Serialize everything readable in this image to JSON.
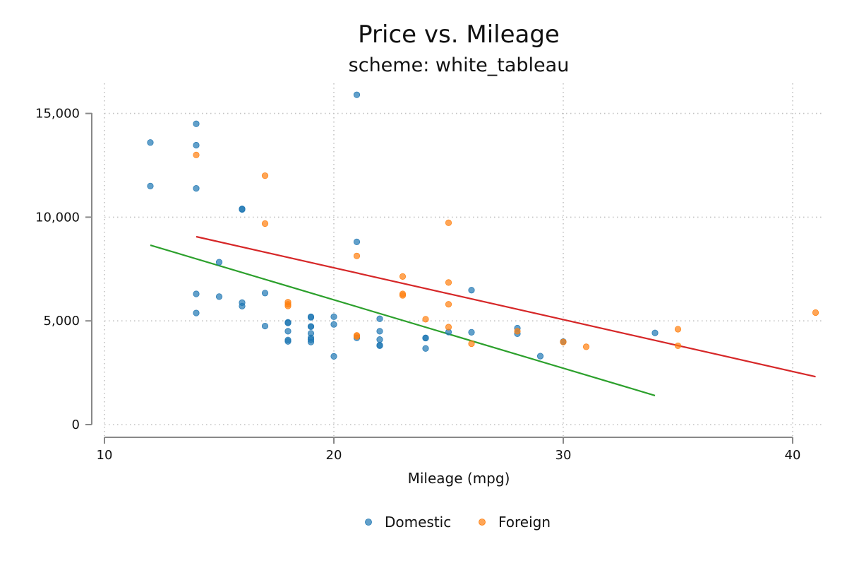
{
  "chart_data": {
    "type": "scatter",
    "title": "Price vs. Mileage",
    "subtitle": "scheme: white_tableau",
    "xlabel": "Mileage (mpg)",
    "ylabel": "",
    "xlim": [
      10,
      41.5
    ],
    "ylim": [
      -500,
      16000
    ],
    "x_ticks": [
      10,
      20,
      30,
      40
    ],
    "y_ticks": [
      0,
      5000,
      10000,
      15000
    ],
    "x_tick_labels": [
      "10",
      "20",
      "30",
      "40"
    ],
    "y_tick_labels": [
      "0",
      "5,000",
      "10,000",
      "15,000"
    ],
    "grid": true,
    "legend": "bottom",
    "series": [
      {
        "name": "Domestic",
        "color": "#1f77b4",
        "points": [
          [
            12,
            13600
          ],
          [
            12,
            11500
          ],
          [
            14,
            14500
          ],
          [
            14,
            13470
          ],
          [
            14,
            11390
          ],
          [
            14,
            6300
          ],
          [
            14,
            5380
          ],
          [
            15,
            7830
          ],
          [
            15,
            6170
          ],
          [
            16,
            10370
          ],
          [
            16,
            10400
          ],
          [
            16,
            5880
          ],
          [
            16,
            5710
          ],
          [
            17,
            6340
          ],
          [
            17,
            4750
          ],
          [
            18,
            4930
          ],
          [
            18,
            4900
          ],
          [
            18,
            4500
          ],
          [
            18,
            4080
          ],
          [
            18,
            4010
          ],
          [
            19,
            5200
          ],
          [
            19,
            5170
          ],
          [
            19,
            4730
          ],
          [
            19,
            4720
          ],
          [
            19,
            4400
          ],
          [
            19,
            4180
          ],
          [
            19,
            4100
          ],
          [
            19,
            3980
          ],
          [
            20,
            5200
          ],
          [
            20,
            4830
          ],
          [
            20,
            3290
          ],
          [
            21,
            15900
          ],
          [
            21,
            8810
          ],
          [
            21,
            4180
          ],
          [
            22,
            5100
          ],
          [
            22,
            4500
          ],
          [
            22,
            4100
          ],
          [
            22,
            3830
          ],
          [
            22,
            3800
          ],
          [
            24,
            4180
          ],
          [
            24,
            4170
          ],
          [
            24,
            3670
          ],
          [
            25,
            4460
          ],
          [
            26,
            6480
          ],
          [
            26,
            4450
          ],
          [
            28,
            4650
          ],
          [
            28,
            4380
          ],
          [
            29,
            3300
          ],
          [
            30,
            4000
          ],
          [
            34,
            4420
          ]
        ]
      },
      {
        "name": "Foreign",
        "color": "#ff7f0e",
        "points": [
          [
            14,
            13000
          ],
          [
            17,
            12000
          ],
          [
            17,
            9690
          ],
          [
            18,
            5900
          ],
          [
            18,
            5800
          ],
          [
            18,
            5720
          ],
          [
            21,
            8130
          ],
          [
            21,
            4300
          ],
          [
            21,
            4250
          ],
          [
            23,
            7140
          ],
          [
            23,
            6300
          ],
          [
            23,
            6230
          ],
          [
            24,
            5080
          ],
          [
            25,
            9730
          ],
          [
            25,
            6850
          ],
          [
            25,
            5800
          ],
          [
            25,
            4700
          ],
          [
            26,
            3900
          ],
          [
            28,
            4500
          ],
          [
            30,
            3980
          ],
          [
            31,
            3750
          ],
          [
            35,
            4600
          ],
          [
            35,
            3800
          ],
          [
            41,
            5400
          ]
        ]
      }
    ],
    "fit_lines": [
      {
        "name": "Domestic fit",
        "color": "#2ca02c",
        "x": [
          12,
          34
        ],
        "y": [
          8650,
          1400
        ]
      },
      {
        "name": "Foreign fit",
        "color": "#d62728",
        "x": [
          14,
          41
        ],
        "y": [
          9060,
          2310
        ]
      }
    ]
  }
}
